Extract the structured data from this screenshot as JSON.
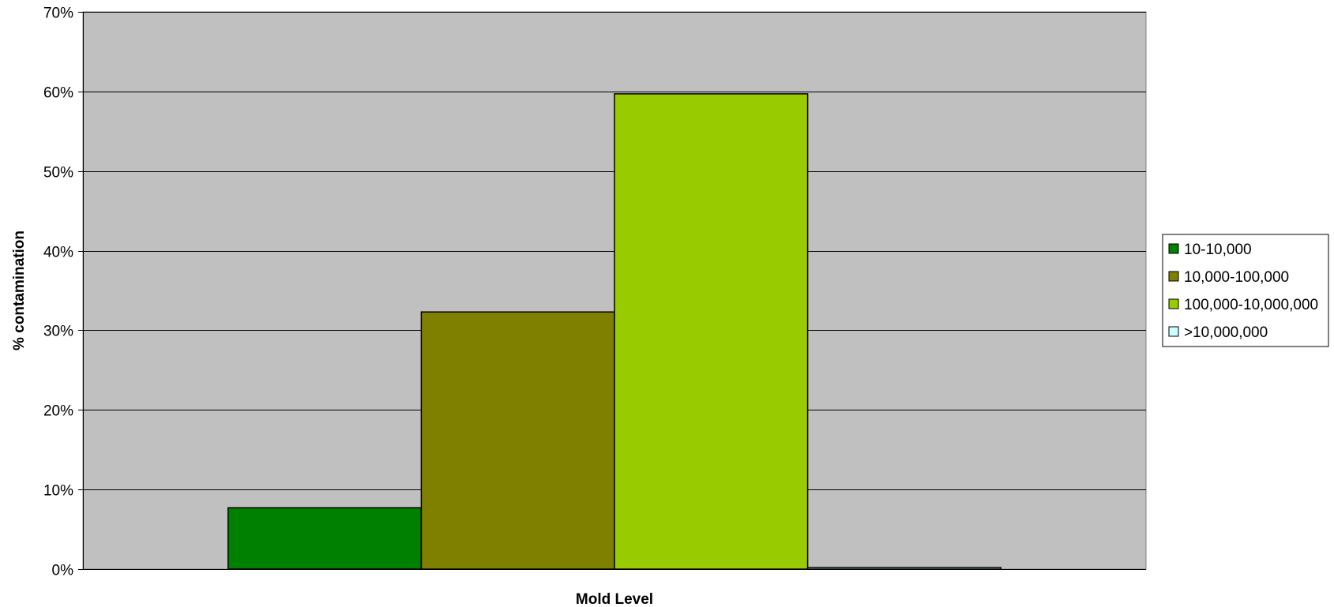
{
  "chart_data": {
    "type": "bar",
    "title": "",
    "xlabel": "Mold Level",
    "ylabel": "% contamination",
    "ylim": [
      0,
      0.7
    ],
    "yticks": [
      0,
      0.1,
      0.2,
      0.3,
      0.4,
      0.5,
      0.6,
      0.7
    ],
    "ytick_labels": [
      "0%",
      "10%",
      "20%",
      "30%",
      "40%",
      "50%",
      "60%",
      "70%"
    ],
    "grid": true,
    "legend_position": "right",
    "series": [
      {
        "name": "10-10,000",
        "value": 0.077,
        "color": "#008000"
      },
      {
        "name": "10,000-100,000",
        "value": 0.323,
        "color": "#808000"
      },
      {
        "name": "100,000-10,000,000",
        "value": 0.597,
        "color": "#99cc00"
      },
      {
        "name": ">10,000,000",
        "value": 0.002,
        "color": "#ccffff"
      }
    ],
    "plot_background": "#c0c0c0"
  }
}
